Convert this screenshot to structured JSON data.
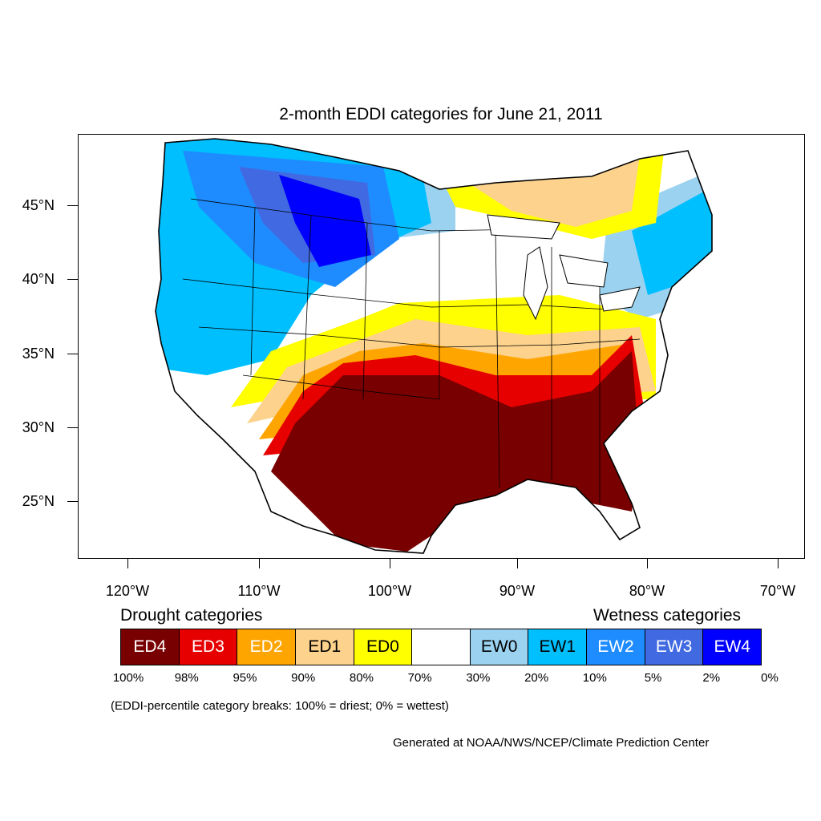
{
  "title": "2-month EDDI categories for June 21, 2011",
  "y_axis": {
    "ticks": [
      "45°N",
      "40°N",
      "35°N",
      "30°N",
      "25°N"
    ]
  },
  "x_axis": {
    "ticks": [
      "120°W",
      "110°W",
      "100°W",
      "90°W",
      "80°W",
      "70°W"
    ]
  },
  "legend": {
    "drought_heading": "Drought categories",
    "wetness_heading": "Wetness categories",
    "categories": [
      {
        "label": "ED4",
        "color": "#780000",
        "text_color": "#ffffff"
      },
      {
        "label": "ED3",
        "color": "#e60000",
        "text_color": "#ffffff"
      },
      {
        "label": "ED2",
        "color": "#ffa500",
        "text_color": "#ffffff"
      },
      {
        "label": "ED1",
        "color": "#fcd28c",
        "text_color": "#000000"
      },
      {
        "label": "ED0",
        "color": "#ffff00",
        "text_color": "#000000"
      },
      {
        "label": "",
        "color": "#ffffff",
        "text_color": "#000000"
      },
      {
        "label": "EW0",
        "color": "#9bd2f0",
        "text_color": "#000000"
      },
      {
        "label": "EW1",
        "color": "#00bfff",
        "text_color": "#000000"
      },
      {
        "label": "EW2",
        "color": "#1e8cff",
        "text_color": "#ffffff"
      },
      {
        "label": "EW3",
        "color": "#4169e1",
        "text_color": "#ffffff"
      },
      {
        "label": "EW4",
        "color": "#0000ff",
        "text_color": "#ffffff"
      }
    ],
    "breaks": [
      "100%",
      "98%",
      "95%",
      "90%",
      "80%",
      "70%",
      "30%",
      "20%",
      "10%",
      "5%",
      "2%",
      "0%"
    ]
  },
  "note": "(EDDI-percentile category breaks: 100% = driest; 0% = wettest)",
  "credit": "Generated at NOAA/NWS/NCEP/Climate Prediction Center"
}
